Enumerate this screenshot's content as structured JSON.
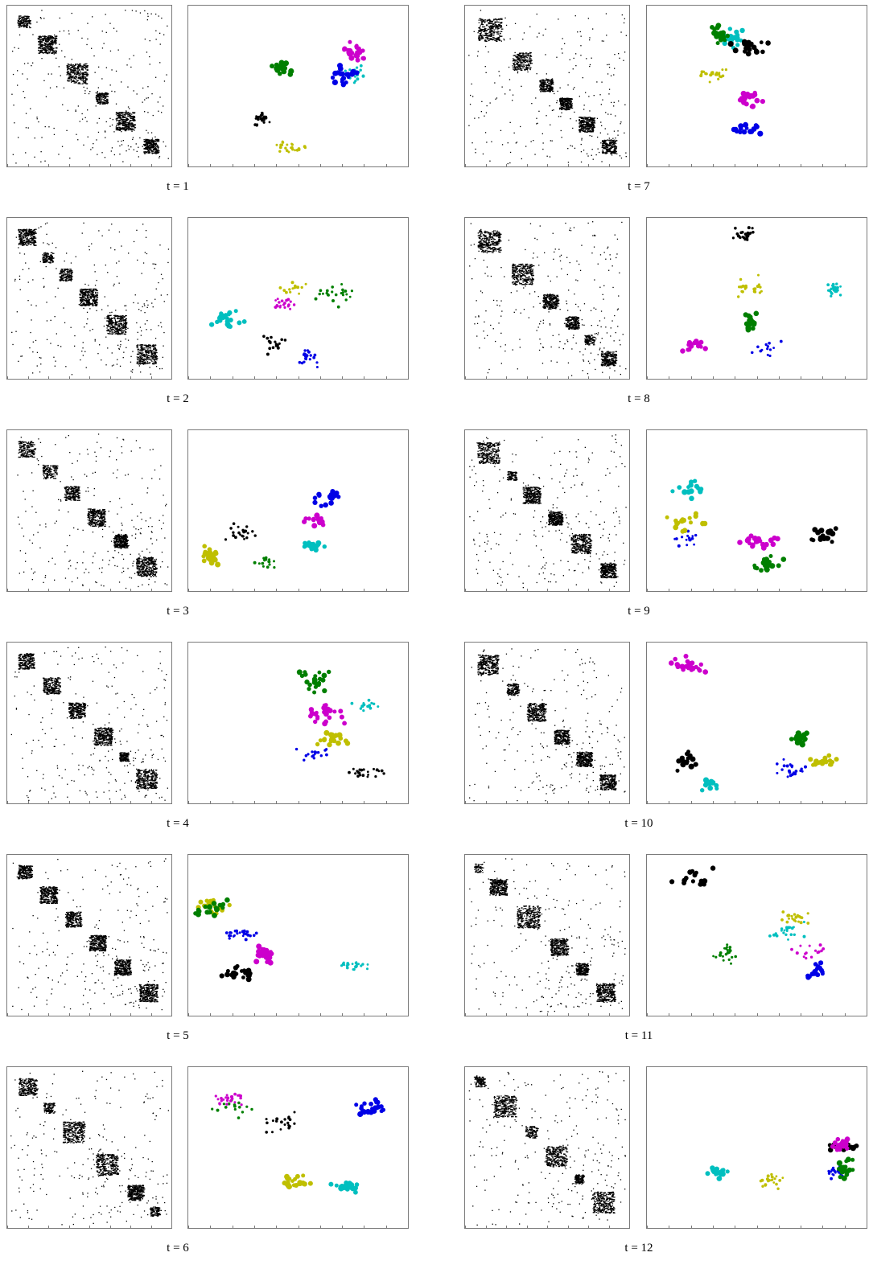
{
  "figure": {
    "panels": [
      {
        "caption": "t = 1"
      },
      {
        "caption": "t = 2"
      },
      {
        "caption": "t = 3"
      },
      {
        "caption": "t = 4"
      },
      {
        "caption": "t = 5"
      },
      {
        "caption": "t = 6"
      },
      {
        "caption": "t = 7"
      },
      {
        "caption": "t = 8"
      },
      {
        "caption": "t = 9"
      },
      {
        "caption": "t = 10"
      },
      {
        "caption": "t = 11"
      },
      {
        "caption": "t = 12"
      }
    ]
  },
  "colors": {
    "magenta": "#cc00cc",
    "cyan": "#00bfbf",
    "blue": "#0000e6",
    "green": "#007f00",
    "black": "#000000",
    "yellow": "#bfbf00",
    "matrix_dot": "#000000",
    "frame": "#7a7a7a"
  },
  "chart_data": [
    {
      "type": "heatmap",
      "title": "",
      "panel": "t = 1",
      "grid": false,
      "legend": "none"
    },
    {
      "type": "scatter",
      "title": "",
      "panel": "t = 1",
      "grid": false,
      "legend": "none",
      "clusters": [
        {
          "color": "magenta"
        },
        {
          "color": "cyan"
        },
        {
          "color": "blue"
        },
        {
          "color": "green"
        },
        {
          "color": "black"
        },
        {
          "color": "yellow"
        }
      ]
    },
    {
      "type": "heatmap",
      "title": "",
      "panel": "t = 2",
      "grid": false,
      "legend": "none"
    },
    {
      "type": "scatter",
      "title": "",
      "panel": "t = 2",
      "grid": false,
      "legend": "none",
      "clusters": [
        {
          "color": "magenta"
        },
        {
          "color": "cyan"
        },
        {
          "color": "blue"
        },
        {
          "color": "green"
        },
        {
          "color": "black"
        },
        {
          "color": "yellow"
        }
      ]
    },
    {
      "type": "heatmap",
      "title": "",
      "panel": "t = 3",
      "grid": false,
      "legend": "none"
    },
    {
      "type": "scatter",
      "title": "",
      "panel": "t = 3",
      "grid": false,
      "legend": "none",
      "clusters": [
        {
          "color": "yellow"
        },
        {
          "color": "green"
        },
        {
          "color": "magenta"
        },
        {
          "color": "black"
        },
        {
          "color": "cyan"
        },
        {
          "color": "blue"
        }
      ]
    },
    {
      "type": "heatmap",
      "title": "",
      "panel": "t = 4",
      "grid": false,
      "legend": "none"
    },
    {
      "type": "scatter",
      "title": "",
      "panel": "t = 4",
      "grid": false,
      "legend": "none",
      "clusters": [
        {
          "color": "green"
        },
        {
          "color": "cyan"
        },
        {
          "color": "blue"
        },
        {
          "color": "yellow"
        },
        {
          "color": "magenta"
        },
        {
          "color": "black"
        }
      ]
    },
    {
      "type": "heatmap",
      "title": "",
      "panel": "t = 5",
      "grid": false,
      "legend": "none"
    },
    {
      "type": "scatter",
      "title": "",
      "panel": "t = 5",
      "grid": false,
      "legend": "none",
      "clusters": [
        {
          "color": "blue"
        },
        {
          "color": "yellow"
        },
        {
          "color": "black"
        },
        {
          "color": "cyan"
        },
        {
          "color": "magenta"
        },
        {
          "color": "green"
        }
      ]
    },
    {
      "type": "heatmap",
      "title": "",
      "panel": "t = 6",
      "grid": false,
      "legend": "none"
    },
    {
      "type": "scatter",
      "title": "",
      "panel": "t = 6",
      "grid": false,
      "legend": "none",
      "clusters": [
        {
          "color": "cyan"
        },
        {
          "color": "green"
        },
        {
          "color": "black"
        },
        {
          "color": "magenta"
        },
        {
          "color": "blue"
        },
        {
          "color": "yellow"
        }
      ]
    },
    {
      "type": "heatmap",
      "title": "",
      "panel": "t = 7",
      "grid": false,
      "legend": "none"
    },
    {
      "type": "scatter",
      "title": "",
      "panel": "t = 7",
      "grid": false,
      "legend": "none",
      "clusters": [
        {
          "color": "cyan"
        },
        {
          "color": "green"
        },
        {
          "color": "yellow"
        },
        {
          "color": "blue"
        },
        {
          "color": "black"
        },
        {
          "color": "magenta"
        }
      ]
    },
    {
      "type": "heatmap",
      "title": "",
      "panel": "t = 8",
      "grid": false,
      "legend": "none"
    },
    {
      "type": "scatter",
      "title": "",
      "panel": "t = 8",
      "grid": false,
      "legend": "none",
      "clusters": [
        {
          "color": "cyan"
        },
        {
          "color": "black"
        },
        {
          "color": "blue"
        },
        {
          "color": "green"
        },
        {
          "color": "yellow"
        },
        {
          "color": "magenta"
        }
      ]
    },
    {
      "type": "heatmap",
      "title": "",
      "panel": "t = 9",
      "grid": false,
      "legend": "none"
    },
    {
      "type": "scatter",
      "title": "",
      "panel": "t = 9",
      "grid": false,
      "legend": "none",
      "clusters": [
        {
          "color": "magenta"
        },
        {
          "color": "green"
        },
        {
          "color": "cyan"
        },
        {
          "color": "blue"
        },
        {
          "color": "black"
        },
        {
          "color": "yellow"
        }
      ]
    },
    {
      "type": "heatmap",
      "title": "",
      "panel": "t = 10",
      "grid": false,
      "legend": "none"
    },
    {
      "type": "scatter",
      "title": "",
      "panel": "t = 10",
      "grid": false,
      "legend": "none",
      "clusters": [
        {
          "color": "magenta"
        },
        {
          "color": "blue"
        },
        {
          "color": "green"
        },
        {
          "color": "cyan"
        },
        {
          "color": "black"
        },
        {
          "color": "yellow"
        }
      ]
    },
    {
      "type": "heatmap",
      "title": "",
      "panel": "t = 11",
      "grid": false,
      "legend": "none"
    },
    {
      "type": "scatter",
      "title": "",
      "panel": "t = 11",
      "grid": false,
      "legend": "none",
      "clusters": [
        {
          "color": "yellow"
        },
        {
          "color": "blue"
        },
        {
          "color": "magenta"
        },
        {
          "color": "black"
        },
        {
          "color": "green"
        },
        {
          "color": "cyan"
        }
      ]
    },
    {
      "type": "heatmap",
      "title": "",
      "panel": "t = 12",
      "grid": false,
      "legend": "none"
    },
    {
      "type": "scatter",
      "title": "",
      "panel": "t = 12",
      "grid": false,
      "legend": "none",
      "clusters": [
        {
          "color": "cyan"
        },
        {
          "color": "blue"
        },
        {
          "color": "yellow"
        },
        {
          "color": "black"
        },
        {
          "color": "green"
        },
        {
          "color": "magenta"
        }
      ]
    }
  ]
}
